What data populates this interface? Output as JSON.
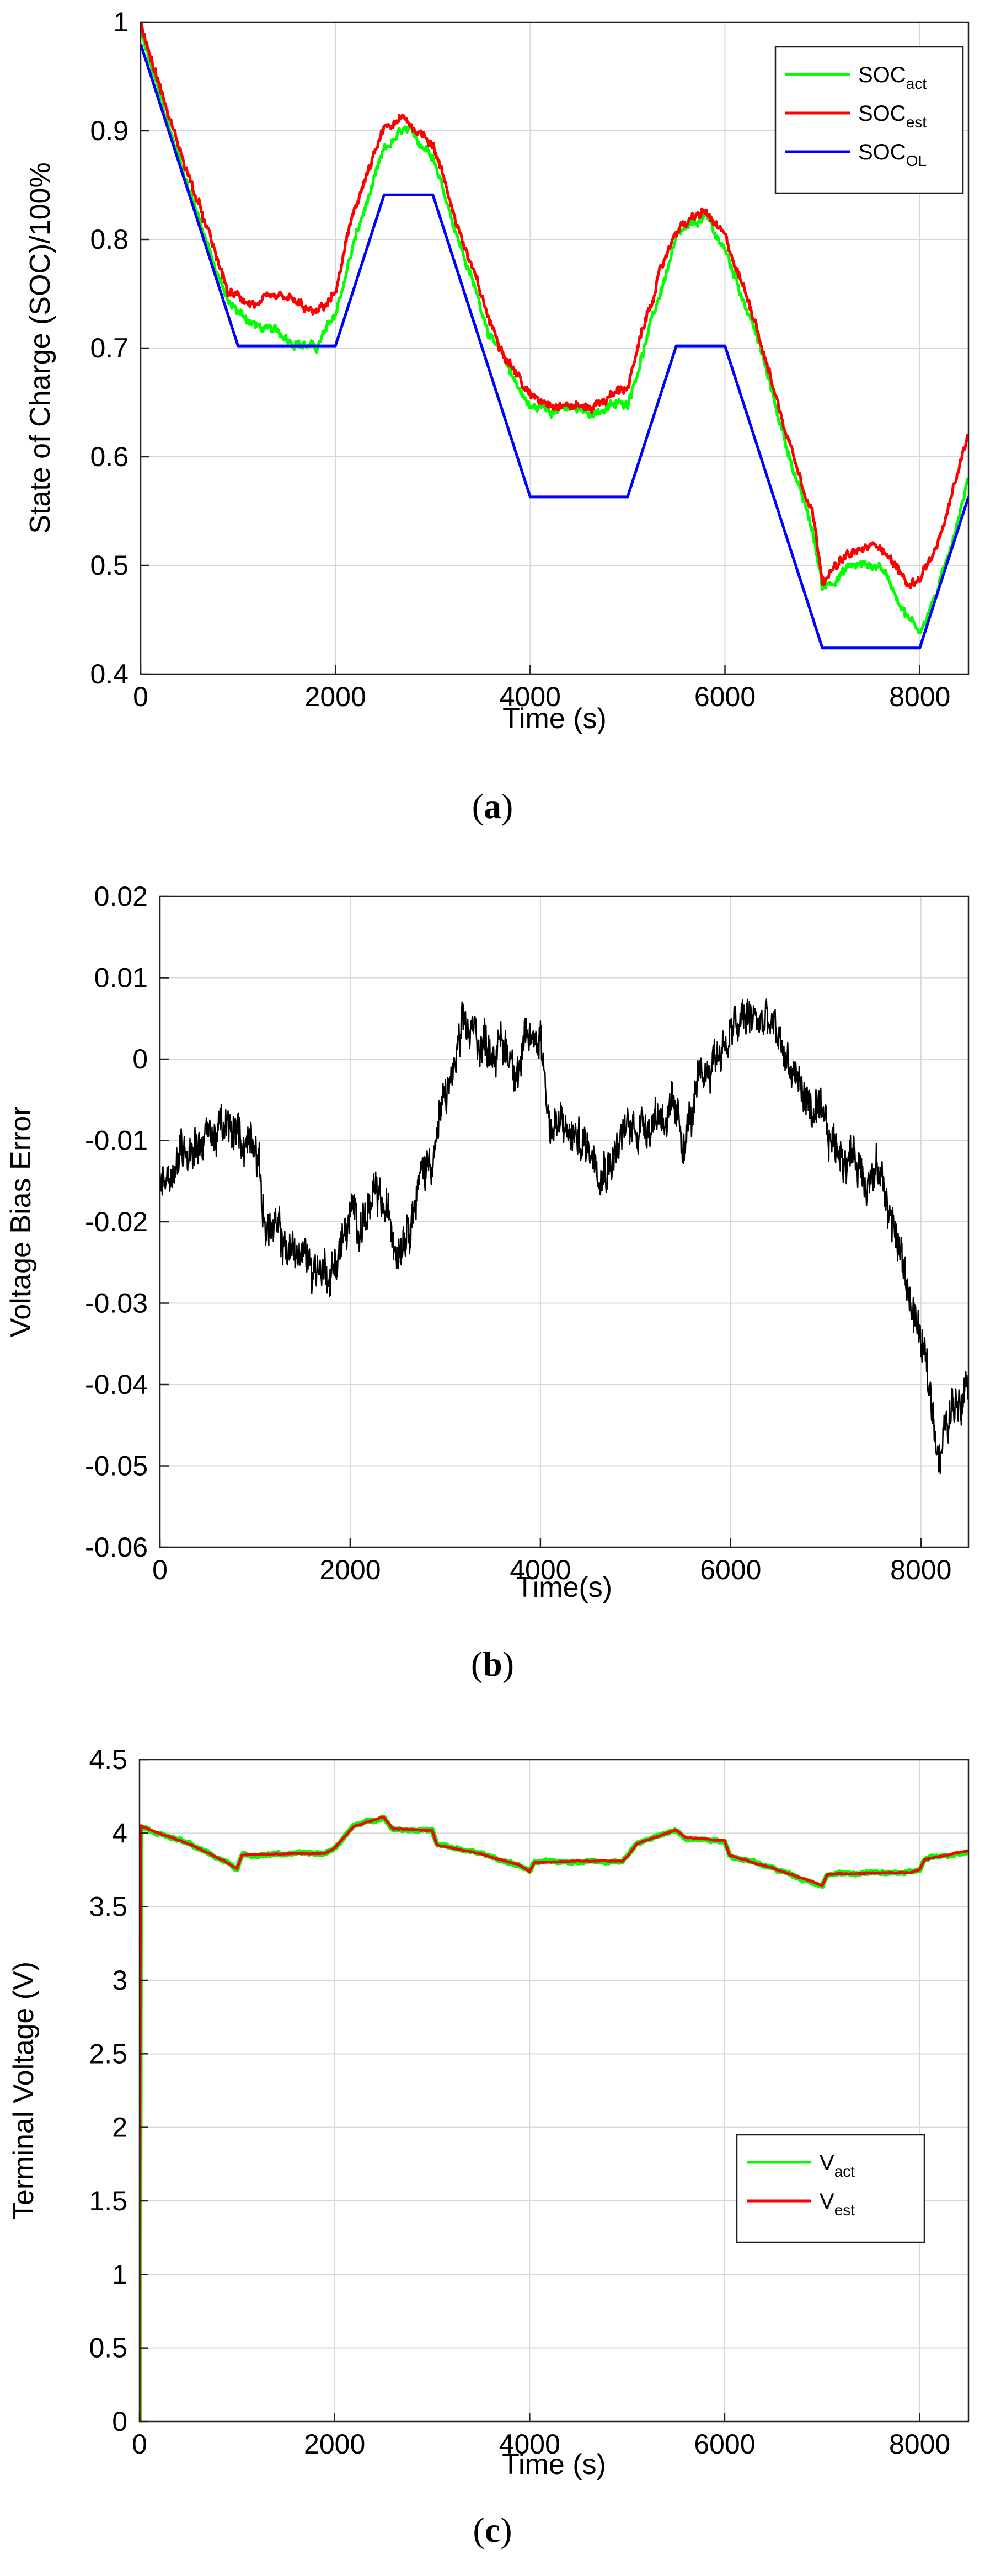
{
  "chart_data": [
    {
      "panel": "a",
      "type": "line",
      "caption": "a",
      "xlabel": "Time (s)",
      "ylabel": "State of Charge (SOC)/100%",
      "xlim": [
        0,
        8500
      ],
      "ylim": [
        0.4,
        1
      ],
      "xticks": [
        "0",
        "2000",
        "4000",
        "6000",
        "8000"
      ],
      "yticks": [
        "0.4",
        "0.5",
        "0.6",
        "0.7",
        "0.8",
        "0.9",
        "1"
      ],
      "grid": true,
      "legend_position": "top-right",
      "series": [
        {
          "name": "SOC",
          "sub": "act",
          "color": "#00ff00",
          "x": [
            0,
            300,
            600,
            900,
            1200,
            1500,
            1800,
            2000,
            2200,
            2500,
            2700,
            3000,
            3300,
            3600,
            4000,
            4300,
            4600,
            5000,
            5300,
            5500,
            5800,
            6000,
            6300,
            6600,
            6900,
            7000,
            7300,
            7600,
            7900,
            8000,
            8200,
            8500
          ],
          "y": [
            0.99,
            0.9,
            0.82,
            0.74,
            0.72,
            0.71,
            0.7,
            0.73,
            0.8,
            0.88,
            0.9,
            0.88,
            0.79,
            0.71,
            0.645,
            0.645,
            0.64,
            0.65,
            0.74,
            0.8,
            0.82,
            0.79,
            0.72,
            0.62,
            0.53,
            0.48,
            0.5,
            0.5,
            0.45,
            0.44,
            0.48,
            0.58
          ]
        },
        {
          "name": "SOC",
          "sub": "est",
          "color": "#ff0000",
          "x": [
            0,
            300,
            600,
            900,
            1200,
            1500,
            1800,
            2000,
            2200,
            2500,
            2700,
            3000,
            3300,
            3600,
            4000,
            4300,
            4600,
            5000,
            5300,
            5500,
            5800,
            6000,
            6300,
            6600,
            6900,
            7000,
            7300,
            7600,
            7900,
            8000,
            8200,
            8500
          ],
          "y": [
            1.0,
            0.91,
            0.83,
            0.75,
            0.74,
            0.745,
            0.73,
            0.75,
            0.83,
            0.9,
            0.91,
            0.89,
            0.8,
            0.72,
            0.655,
            0.65,
            0.645,
            0.665,
            0.76,
            0.81,
            0.825,
            0.8,
            0.73,
            0.63,
            0.55,
            0.49,
            0.51,
            0.52,
            0.48,
            0.49,
            0.52,
            0.62
          ]
        },
        {
          "name": "SOC",
          "sub": "OL",
          "color": "#0000ff",
          "x": [
            0,
            1000,
            2000,
            2500,
            3000,
            4000,
            5000,
            5500,
            6000,
            7000,
            8000,
            8500
          ],
          "y": [
            0.98,
            0.702,
            0.702,
            0.841,
            0.841,
            0.563,
            0.563,
            0.702,
            0.702,
            0.424,
            0.424,
            0.563
          ]
        }
      ]
    },
    {
      "panel": "b",
      "type": "line",
      "caption": "b",
      "xlabel": "Time(s)",
      "ylabel": "Voltage Bias Error",
      "xlim": [
        0,
        8500
      ],
      "ylim": [
        -0.06,
        0.02
      ],
      "xticks": [
        "0",
        "2000",
        "4000",
        "6000",
        "8000"
      ],
      "yticks": [
        "-0.06",
        "-0.05",
        "-0.04",
        "-0.03",
        "-0.02",
        "-0.01",
        "0",
        "0.01",
        "0.02"
      ],
      "grid": true,
      "series": [
        {
          "name": "",
          "color": "#000000",
          "x": [
            0,
            300,
            600,
            900,
            1000,
            1100,
            1300,
            1600,
            1800,
            2000,
            2300,
            2500,
            2700,
            2900,
            3000,
            3200,
            3500,
            3800,
            4000,
            4100,
            4400,
            4700,
            5000,
            5300,
            5500,
            5800,
            6000,
            6200,
            6400,
            6600,
            6800,
            7000,
            7300,
            7600,
            7800,
            8000,
            8200,
            8500
          ],
          "y": [
            -0.015,
            -0.01,
            -0.009,
            -0.01,
            -0.008,
            -0.02,
            -0.023,
            -0.025,
            -0.026,
            -0.02,
            -0.018,
            -0.022,
            -0.016,
            -0.01,
            -0.005,
            0.003,
            0.002,
            0.0,
            0.004,
            -0.008,
            -0.01,
            -0.012,
            -0.008,
            -0.006,
            -0.01,
            0.0,
            0.003,
            0.005,
            0.004,
            0.0,
            -0.005,
            -0.01,
            -0.012,
            -0.015,
            -0.025,
            -0.035,
            -0.048,
            -0.037
          ]
        }
      ]
    },
    {
      "panel": "c",
      "type": "line",
      "caption": "c",
      "xlabel": "Time (s)",
      "ylabel": "Terminal Voltage (V)",
      "xlim": [
        0,
        8500
      ],
      "ylim": [
        0,
        4.5
      ],
      "xticks": [
        "0",
        "2000",
        "4000",
        "6000",
        "8000"
      ],
      "yticks": [
        "0",
        "0.5",
        "1",
        "1.5",
        "2",
        "2.5",
        "3",
        "3.5",
        "4",
        "4.5"
      ],
      "grid": true,
      "legend_position": "right",
      "series": [
        {
          "name": "V",
          "sub": "act",
          "color": "#00ff00",
          "x": [
            0,
            10,
            200,
            500,
            900,
            1000,
            1050,
            1500,
            1900,
            2000,
            2200,
            2500,
            2600,
            3000,
            3050,
            3500,
            3900,
            4000,
            4050,
            4500,
            4950,
            5000,
            5100,
            5500,
            5600,
            6000,
            6050,
            6500,
            6900,
            7000,
            7050,
            7500,
            7900,
            8000,
            8050,
            8500
          ],
          "y": [
            0,
            4.05,
            4.0,
            3.93,
            3.8,
            3.76,
            3.85,
            3.86,
            3.86,
            3.9,
            4.05,
            4.11,
            4.03,
            4.02,
            3.92,
            3.86,
            3.78,
            3.74,
            3.8,
            3.81,
            3.81,
            3.84,
            3.93,
            4.02,
            3.97,
            3.95,
            3.85,
            3.76,
            3.67,
            3.64,
            3.72,
            3.73,
            3.73,
            3.75,
            3.82,
            3.88
          ]
        },
        {
          "name": "V",
          "sub": "est",
          "color": "#ff0000",
          "x": [
            0,
            10,
            200,
            500,
            900,
            1000,
            1050,
            1500,
            1900,
            2000,
            2200,
            2500,
            2600,
            3000,
            3050,
            3500,
            3900,
            4000,
            4050,
            4500,
            4950,
            5000,
            5100,
            5500,
            5600,
            6000,
            6050,
            6500,
            6900,
            7000,
            7050,
            7500,
            7900,
            8000,
            8050,
            8500
          ],
          "y": [
            0,
            4.05,
            4.0,
            3.93,
            3.8,
            3.76,
            3.85,
            3.86,
            3.86,
            3.9,
            4.05,
            4.11,
            4.03,
            4.02,
            3.92,
            3.86,
            3.78,
            3.74,
            3.8,
            3.81,
            3.81,
            3.84,
            3.93,
            4.02,
            3.97,
            3.95,
            3.85,
            3.76,
            3.67,
            3.64,
            3.72,
            3.73,
            3.73,
            3.75,
            3.82,
            3.88
          ]
        }
      ]
    }
  ]
}
